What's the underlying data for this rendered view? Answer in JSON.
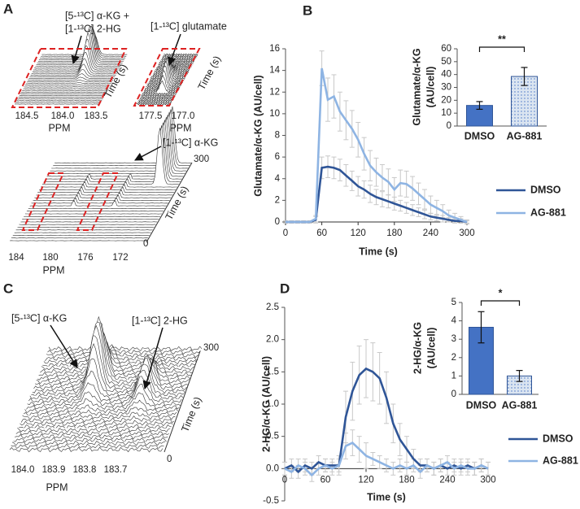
{
  "spectra": {
    "A": {
      "panel": "A",
      "top_left": {
        "peak_label": [
          "[5-¹³C] α-KG +",
          "[1-¹³C] 2-HG"
        ],
        "ticks": [
          "184.5",
          "184.0",
          "183.5"
        ],
        "xlabel": "PPM",
        "time_label": "Time (s)"
      },
      "top_right": {
        "peak_label": "[1-¹³C] glutamate",
        "ticks": [
          "177.5",
          "177.0"
        ],
        "xlabel": "PPM",
        "time_label": "Time (s)"
      },
      "bottom": {
        "peak_label": "[1-¹³C] α-KG",
        "ticks": [
          "184",
          "180",
          "176",
          "172"
        ],
        "xlabel": "PPM",
        "time_label": "Time (s)",
        "time_ticks": [
          "0",
          "300"
        ]
      }
    },
    "C": {
      "panel": "C",
      "peak_labels": [
        "[5-¹³C] α-KG",
        "[1-¹³C] 2-HG"
      ],
      "ticks": [
        "184.0",
        "183.9",
        "183.8",
        "183.7"
      ],
      "xlabel": "PPM",
      "time_label": "Time (s)",
      "time_ticks": [
        "0",
        "300"
      ]
    }
  },
  "chart_data": [
    {
      "type": "line",
      "panel": "B",
      "xlabel": "Time (s)",
      "ylabel": "Glutamate/α-KG (AU/cell)",
      "x": [
        0,
        10,
        20,
        30,
        40,
        50,
        60,
        70,
        80,
        90,
        100,
        110,
        120,
        130,
        140,
        150,
        160,
        170,
        180,
        190,
        200,
        210,
        220,
        230,
        240,
        250,
        260,
        270,
        280,
        290,
        300
      ],
      "xlim": [
        0,
        300
      ],
      "xticks": [
        0,
        60,
        120,
        180,
        240,
        300
      ],
      "ylim": [
        0,
        16
      ],
      "yticks": [
        0,
        2,
        4,
        6,
        8,
        10,
        12,
        14,
        16
      ],
      "legend": "right",
      "series": [
        {
          "name": "DMSO",
          "color": "#2f5597",
          "values": [
            0,
            0,
            0,
            0,
            0,
            0.2,
            5,
            5.1,
            5,
            4.8,
            4.3,
            3.8,
            3.3,
            3.0,
            2.6,
            2.3,
            2.1,
            1.9,
            1.7,
            1.5,
            1.3,
            1.1,
            0.9,
            0.7,
            0.5,
            0.4,
            0.3,
            0.2,
            0.1,
            0.1,
            0
          ],
          "errors": [
            0.1,
            0.1,
            0.1,
            0.1,
            0.1,
            0.3,
            1.0,
            1.0,
            1.0,
            1.0,
            1.0,
            0.9,
            0.9,
            0.8,
            0.8,
            0.7,
            0.7,
            0.6,
            0.6,
            0.5,
            0.5,
            0.5,
            0.4,
            0.4,
            0.3,
            0.3,
            0.3,
            0.2,
            0.2,
            0.2,
            0.1
          ]
        },
        {
          "name": "AG-881",
          "color": "#8eb4e3",
          "values": [
            0,
            0,
            0,
            0,
            0,
            0.3,
            14.2,
            11.3,
            11.6,
            10.2,
            9.4,
            8.6,
            7.6,
            6.3,
            5.2,
            4.6,
            4.1,
            3.7,
            3.0,
            3.6,
            3.5,
            3.1,
            2.6,
            2.1,
            1.6,
            1.3,
            1.0,
            0.6,
            0.4,
            0.2,
            0
          ],
          "errors": [
            0.1,
            0.1,
            0.1,
            0.1,
            0.1,
            0.3,
            1.6,
            2.0,
            2.0,
            1.8,
            1.8,
            1.7,
            1.6,
            1.5,
            1.4,
            1.3,
            1.2,
            1.2,
            1.1,
            1.2,
            1.2,
            1.1,
            1.0,
            0.9,
            0.8,
            0.7,
            0.6,
            0.5,
            0.4,
            0.3,
            0.2
          ]
        }
      ]
    },
    {
      "type": "bar",
      "ylabel": [
        "Glutamate/α-KG",
        "(AU/cell)"
      ],
      "categories": [
        "DMSO",
        "AG-881"
      ],
      "values": [
        16,
        38.5
      ],
      "errors": [
        3,
        7
      ],
      "colors": [
        "#4472c4",
        "#dbe5f1"
      ],
      "patterns": [
        "solid",
        "dots"
      ],
      "ylim": [
        0,
        60
      ],
      "yticks": [
        0,
        10,
        20,
        30,
        40,
        50,
        60
      ],
      "significance": "**"
    },
    {
      "type": "line",
      "panel": "D",
      "xlabel": "Time (s)",
      "ylabel": "2-HG/α-KG (AU/cell)",
      "x": [
        0,
        10,
        20,
        30,
        40,
        50,
        60,
        70,
        80,
        90,
        100,
        110,
        120,
        130,
        140,
        150,
        160,
        170,
        180,
        190,
        200,
        210,
        220,
        230,
        240,
        250,
        260,
        270,
        280,
        290,
        300
      ],
      "xlim": [
        0,
        300
      ],
      "xticks": [
        0,
        60,
        120,
        180,
        240,
        300
      ],
      "ylim": [
        -0.5,
        2.5
      ],
      "yticks": [
        -0.5,
        {
          "value": 0,
          "label": "0.0"
        },
        0.5,
        {
          "value": 1,
          "label": "1.0"
        },
        1.5,
        {
          "value": 2,
          "label": "2.0"
        },
        2.5
      ],
      "legend": "right",
      "series": [
        {
          "name": "DMSO",
          "color": "#2f5597",
          "values": [
            0,
            0.05,
            -0.05,
            0.05,
            0,
            0.1,
            0.05,
            0.05,
            0.05,
            0.8,
            1.2,
            1.45,
            1.55,
            1.5,
            1.4,
            1.1,
            0.7,
            0.45,
            0.3,
            0.15,
            0.05,
            0.05,
            0,
            0.05,
            0,
            0.05,
            0,
            0.05,
            0,
            0.05,
            0
          ],
          "errors": [
            0.1,
            0.1,
            0.1,
            0.1,
            0.1,
            0.1,
            0.1,
            0.1,
            0.15,
            0.4,
            0.45,
            0.45,
            0.45,
            0.45,
            0.4,
            0.4,
            0.3,
            0.25,
            0.2,
            0.15,
            0.1,
            0.1,
            0.1,
            0.1,
            0.1,
            0.1,
            0.1,
            0.1,
            0.1,
            0.1,
            0.1
          ]
        },
        {
          "name": "AG-881",
          "color": "#8eb4e3",
          "values": [
            0,
            -0.05,
            0.05,
            0,
            -0.1,
            0,
            0.05,
            0,
            0.05,
            0.35,
            0.4,
            0.3,
            0.2,
            0.15,
            0.1,
            0.05,
            0,
            0.05,
            0,
            0.05,
            -0.05,
            0.05,
            0,
            0.05,
            0.1,
            0,
            0.05,
            0,
            0,
            0.05,
            0
          ],
          "errors": [
            0.1,
            0.1,
            0.1,
            0.1,
            0.1,
            0.1,
            0.1,
            0.1,
            0.1,
            0.2,
            0.2,
            0.2,
            0.2,
            0.1,
            0.1,
            0.1,
            0.1,
            0.1,
            0.1,
            0.1,
            0.1,
            0.1,
            0.1,
            0.1,
            0.1,
            0.1,
            0.1,
            0.1,
            0.1,
            0.1,
            0.1
          ]
        }
      ]
    },
    {
      "type": "bar",
      "ylabel": [
        "2-HG/α-KG",
        "(AU/cell)"
      ],
      "categories": [
        "DMSO",
        "AG-881"
      ],
      "values": [
        3.65,
        1.0
      ],
      "errors": [
        0.85,
        0.3
      ],
      "colors": [
        "#4472c4",
        "#dbe5f1"
      ],
      "patterns": [
        "solid",
        "dots"
      ],
      "ylim": [
        0,
        5
      ],
      "yticks": [
        0,
        1,
        2,
        3,
        4,
        5
      ],
      "significance": "*"
    }
  ]
}
